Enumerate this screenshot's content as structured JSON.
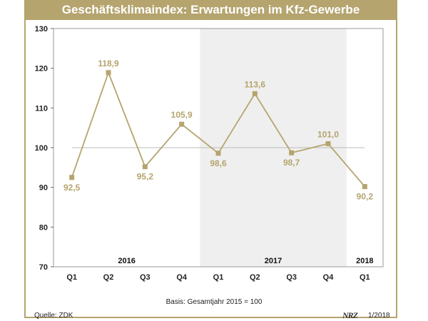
{
  "chart_data": {
    "type": "line",
    "title": "Geschäftsklimaindex: Erwartungen im Kfz-Gewerbe",
    "categories": [
      "Q1",
      "Q2",
      "Q3",
      "Q4",
      "Q1",
      "Q2",
      "Q3",
      "Q4",
      "Q1"
    ],
    "values": [
      92.5,
      118.9,
      95.2,
      105.9,
      98.6,
      113.6,
      98.7,
      101.0,
      90.2
    ],
    "value_labels": [
      "92,5",
      "118,9",
      "95,2",
      "105,9",
      "98,6",
      "113,6",
      "98,7",
      "101,0",
      "90,2"
    ],
    "years": [
      {
        "label": "2016",
        "start": 0,
        "end": 3
      },
      {
        "label": "2017",
        "start": 4,
        "end": 7
      },
      {
        "label": "2018",
        "start": 8,
        "end": 8
      }
    ],
    "shaded_year": "2017",
    "ylim": [
      70,
      130
    ],
    "yticks": [
      70,
      80,
      90,
      100,
      110,
      120,
      130
    ],
    "reference_line": 100,
    "series_color": "#b5a46e"
  },
  "footer": {
    "basis": "Basis: Gesamtjahr 2015 = 100",
    "source": "Quelle: ZDK",
    "logo": "NRZ",
    "edition": "1/2018"
  }
}
